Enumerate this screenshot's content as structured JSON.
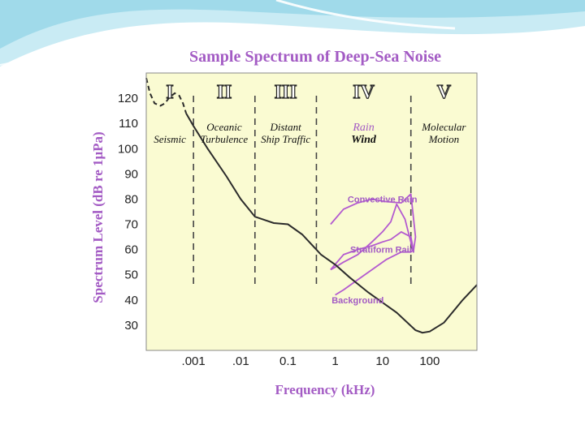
{
  "colors": {
    "plot_bg": "#fafbd2",
    "title": "#a35bc4",
    "curve": "#2b2b2b",
    "rain": "#b35ad0",
    "deco": "#7ecfe0"
  },
  "chart_data": {
    "type": "line",
    "title": "Sample Spectrum of Deep-Sea Noise",
    "xlabel": "Frequency (kHz)",
    "ylabel": "Spectrum Level (dB re 1μPa)",
    "x_scale": "log",
    "x_ticks": [
      0.001,
      0.01,
      0.1,
      1,
      10,
      100
    ],
    "x_tick_labels": [
      ".001",
      ".01",
      "0.1",
      "1",
      "10",
      "100"
    ],
    "xlim": [
      0.0001,
      1000
    ],
    "y_ticks": [
      30,
      40,
      50,
      60,
      70,
      80,
      90,
      100,
      110,
      120
    ],
    "ylim": [
      20,
      130
    ],
    "regions": [
      {
        "numeral": "I",
        "labels": [
          "Seismic"
        ]
      },
      {
        "numeral": "II",
        "labels": [
          "Oceanic",
          "Turbulence"
        ]
      },
      {
        "numeral": "III",
        "labels": [
          "Distant",
          "Ship Traffic"
        ]
      },
      {
        "numeral": "IV",
        "labels": [
          "Rain",
          "Wind"
        ]
      },
      {
        "numeral": "V",
        "labels": [
          "Molecular",
          "Motion"
        ]
      }
    ],
    "region_boundaries_khz": [
      0.001,
      0.02,
      0.4,
      40
    ],
    "series": [
      {
        "x": [
          0.0001,
          0.00012,
          0.00015,
          0.0002,
          0.00025,
          0.0003,
          0.0004,
          0.0005,
          0.0006,
          0.0007
        ],
        "y": [
          128,
          122,
          118,
          117,
          118,
          120,
          122,
          121,
          118,
          114
        ]
      },
      {
        "x": [
          0.0007,
          0.001,
          0.002,
          0.005,
          0.01,
          0.02,
          0.05,
          0.1,
          0.2,
          0.5,
          1,
          2,
          5,
          10,
          20,
          50,
          70,
          100,
          200,
          500,
          1000
        ],
        "y": [
          114,
          109,
          100,
          89,
          80,
          73,
          70.5,
          70,
          66,
          58,
          54,
          49,
          43,
          39,
          35,
          28,
          27,
          27.5,
          31,
          40,
          46
        ]
      }
    ],
    "annotations": [
      {
        "text": "Convective Rain",
        "x": 10,
        "y": 80
      },
      {
        "text": "Stratiform Rain",
        "x": 10,
        "y": 60
      },
      {
        "text": "Background",
        "x": 3,
        "y": 40
      }
    ],
    "rain_outlines": [
      {
        "x": [
          0.8,
          1.5,
          3,
          6,
          12,
          25,
          40,
          50,
          45,
          30,
          20,
          15,
          10,
          6,
          3,
          1.5,
          1,
          0.8
        ],
        "y": [
          70,
          76,
          78.5,
          80,
          79,
          78.5,
          82,
          65,
          59,
          72,
          78,
          71,
          67,
          63,
          58,
          55,
          53,
          52
        ]
      },
      {
        "x": [
          0.8,
          1.5,
          3,
          6,
          10,
          15,
          25,
          40,
          45,
          40,
          25,
          12,
          6,
          3,
          1.5,
          1
        ],
        "y": [
          52,
          58,
          60,
          61.5,
          63,
          64,
          67,
          65,
          60,
          59,
          59,
          56,
          52,
          48,
          44,
          42
        ]
      }
    ]
  }
}
